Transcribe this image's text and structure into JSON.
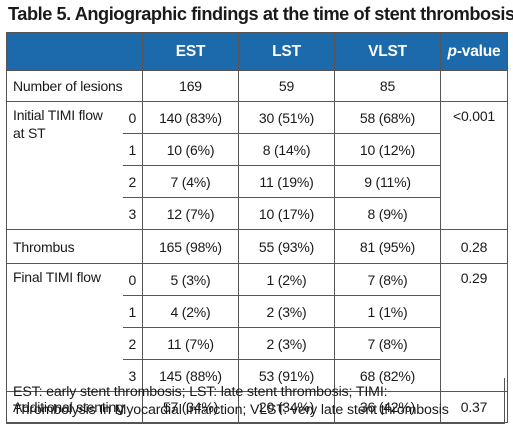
{
  "title": "Table 5. Angiographic findings at the time of stent thrombosis.",
  "header": {
    "col_est": "EST",
    "col_lst": "LST",
    "col_vlst": "VLST",
    "col_p": "p",
    "col_p_suffix": "-value"
  },
  "lesions": {
    "label": "Number of lesions",
    "est": "169",
    "lst": "59",
    "vlst": "85",
    "p": ""
  },
  "initial_timi": {
    "label": "Initial TIMI flow at ST",
    "p": "<0.001",
    "rows": [
      {
        "grade": "0",
        "est": "140 (83%)",
        "lst": "30 (51%)",
        "vlst": "58 (68%)"
      },
      {
        "grade": "1",
        "est": "10 (6%)",
        "lst": "8 (14%)",
        "vlst": "10 (12%)"
      },
      {
        "grade": "2",
        "est": "7 (4%)",
        "lst": "11 (19%)",
        "vlst": "9 (11%)"
      },
      {
        "grade": "3",
        "est": "12 (7%)",
        "lst": "10 (17%)",
        "vlst": "8 (9%)"
      }
    ]
  },
  "thrombus": {
    "label": "Thrombus",
    "est": "165 (98%)",
    "lst": "55 (93%)",
    "vlst": "81 (95%)",
    "p": "0.28"
  },
  "final_timi": {
    "label": "Final TIMI flow",
    "p": "0.29",
    "rows": [
      {
        "grade": "0",
        "est": "5 (3%)",
        "lst": "1 (2%)",
        "vlst": "7 (8%)"
      },
      {
        "grade": "1",
        "est": "4 (2%)",
        "lst": "2 (3%)",
        "vlst": "1 (1%)"
      },
      {
        "grade": "2",
        "est": "11 (7%)",
        "lst": "2 (3%)",
        "vlst": "7 (8%)"
      },
      {
        "grade": "3",
        "est": "145 (88%)",
        "lst": "53 (91%)",
        "vlst": "68 (82%)"
      }
    ]
  },
  "stenting": {
    "label": "Additional stenting",
    "est": "57 (34%)",
    "lst": "20 (34%)",
    "vlst": "36 (42%)",
    "p": "0.37"
  },
  "footnote": {
    "line1": "EST: early stent thrombosis; LST: late stent thrombosis; TIMI:",
    "line2": "Thrombolysis In Myocardial Infarction; VLST: very late stent thrombosis"
  },
  "colors": {
    "header_bg": "#1c6aab",
    "header_text": "#ffffff",
    "border": "#555555"
  }
}
